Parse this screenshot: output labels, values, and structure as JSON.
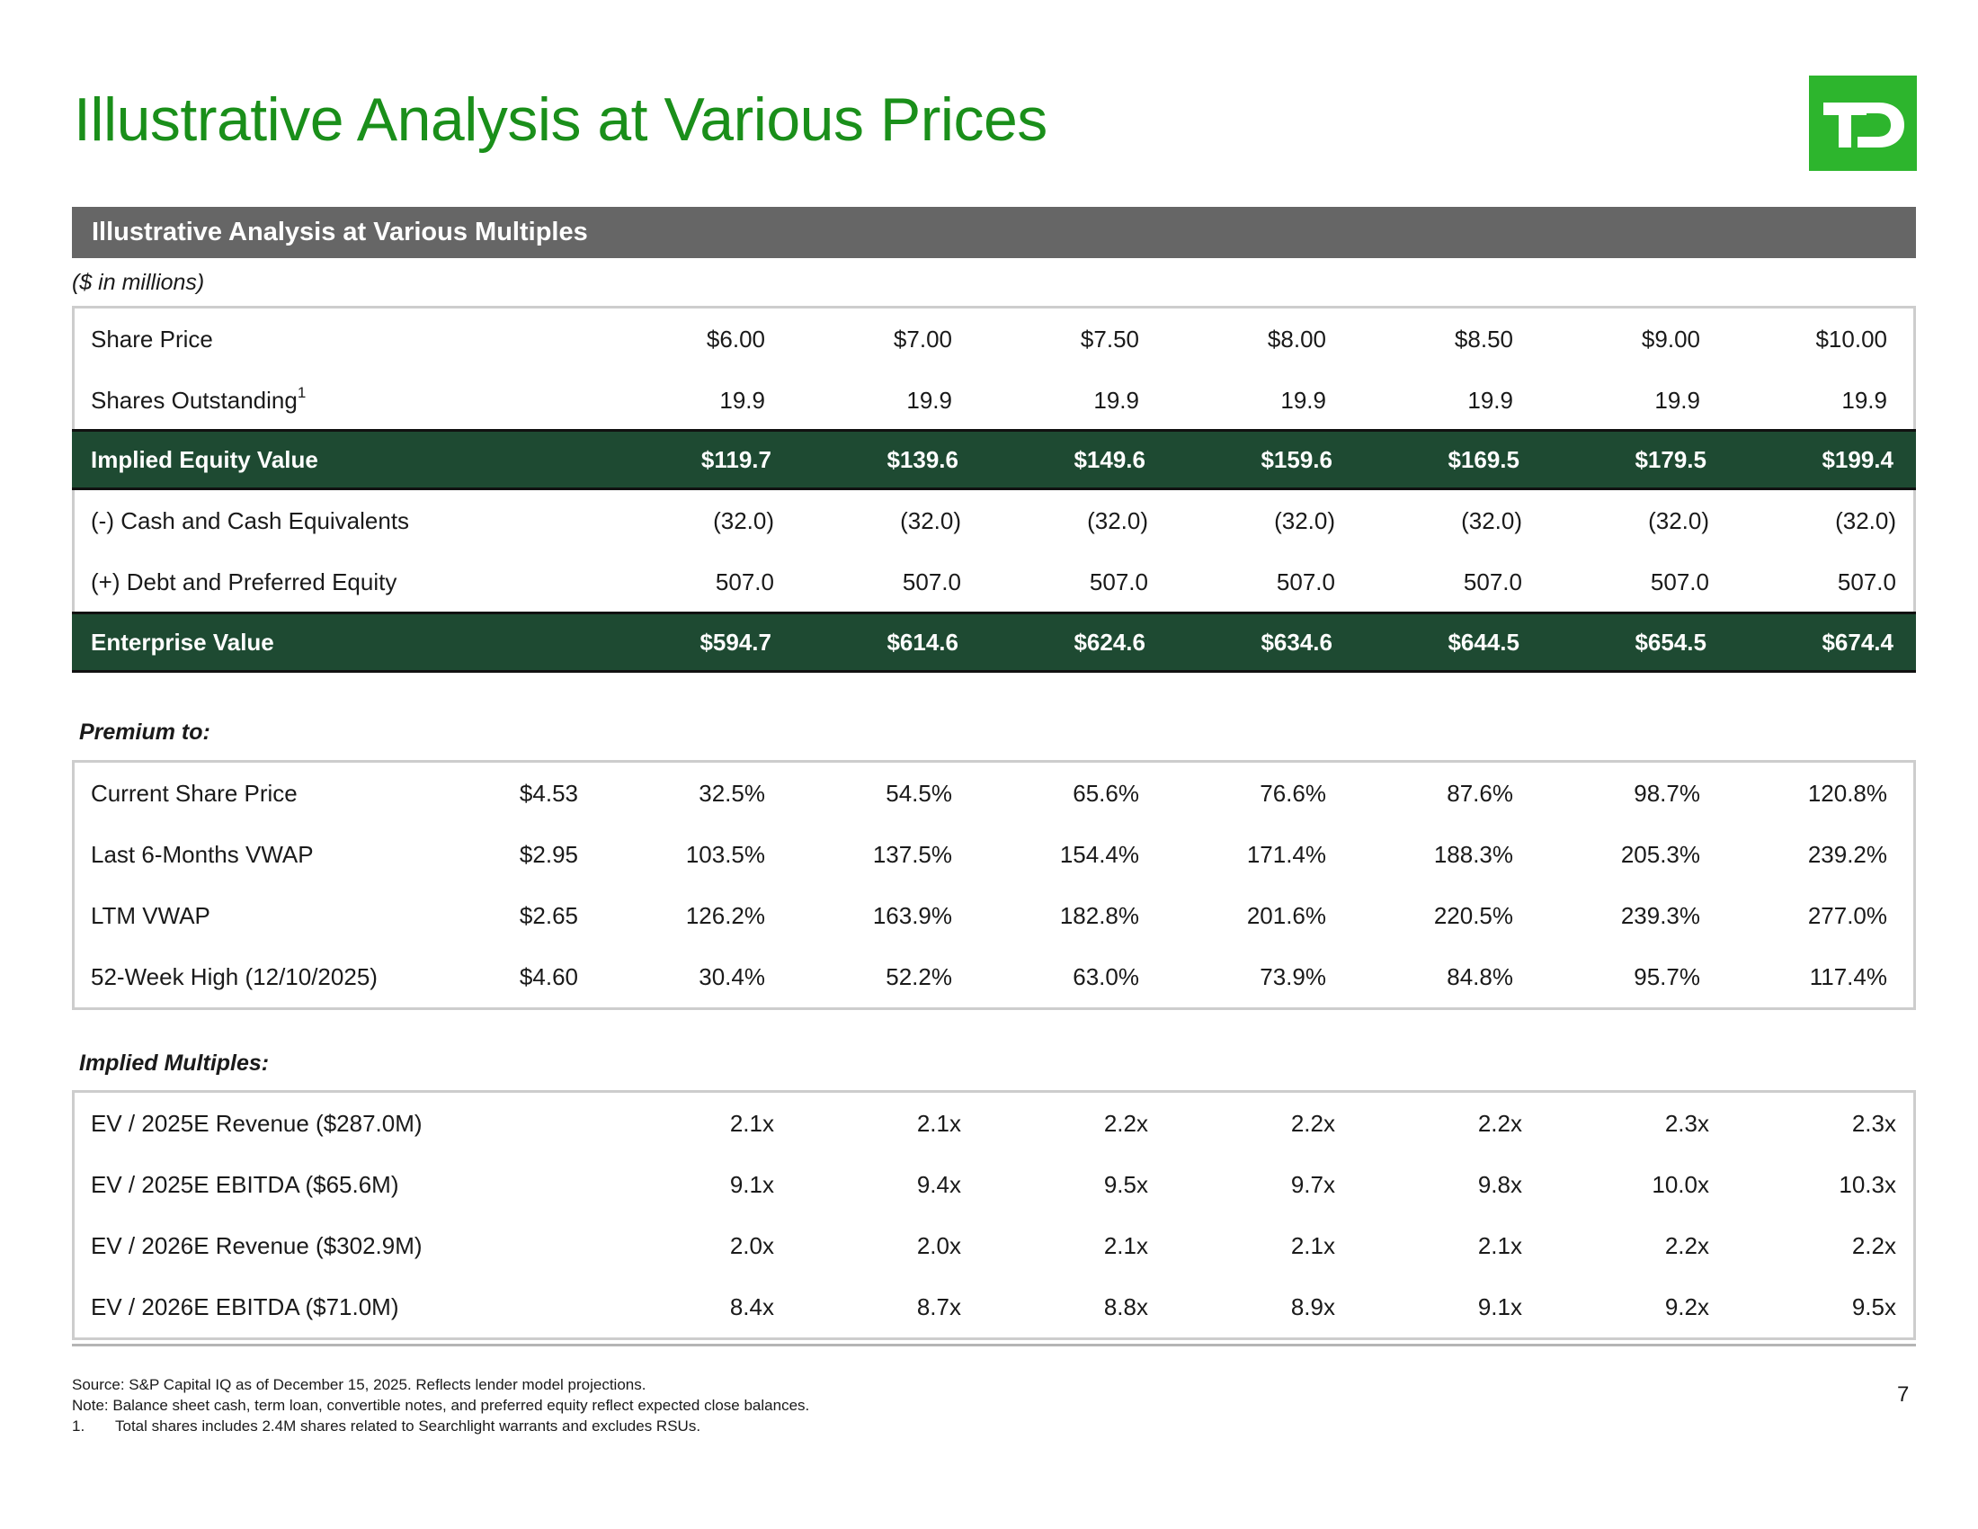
{
  "title": "Illustrative Analysis at Various Prices",
  "logo": {
    "text": "TD",
    "color": "#2db52d"
  },
  "section_header": "Illustrative Analysis at Various Multiples",
  "units_note": "($ in millions)",
  "valuation": {
    "share_price": {
      "label": "Share Price",
      "values": [
        "$6.00",
        "$7.00",
        "$7.50",
        "$8.00",
        "$8.50",
        "$9.00",
        "$10.00"
      ]
    },
    "shares_outstanding": {
      "label": "Shares Outstanding",
      "footnote": "1",
      "values": [
        "19.9",
        "19.9",
        "19.9",
        "19.9",
        "19.9",
        "19.9",
        "19.9"
      ]
    },
    "equity_value": {
      "label": "Implied Equity Value",
      "values": [
        "$119.7",
        "$139.6",
        "$149.6",
        "$159.6",
        "$169.5",
        "$179.5",
        "$199.4"
      ]
    },
    "cash": {
      "label": "(-) Cash and Cash Equivalents",
      "values": [
        "(32.0)",
        "(32.0)",
        "(32.0)",
        "(32.0)",
        "(32.0)",
        "(32.0)",
        "(32.0)"
      ]
    },
    "debt": {
      "label": "(+) Debt and Preferred Equity",
      "values": [
        "507.0",
        "507.0",
        "507.0",
        "507.0",
        "507.0",
        "507.0",
        "507.0"
      ]
    },
    "enterprise_value": {
      "label": "Enterprise Value",
      "values": [
        "$594.7",
        "$614.6",
        "$624.6",
        "$634.6",
        "$644.5",
        "$654.5",
        "$674.4"
      ]
    }
  },
  "premium": {
    "heading": "Premium to:",
    "rows": [
      {
        "label": "Current Share Price",
        "ref": "$4.53",
        "values": [
          "32.5%",
          "54.5%",
          "65.6%",
          "76.6%",
          "87.6%",
          "98.7%",
          "120.8%"
        ]
      },
      {
        "label": "Last 6-Months VWAP",
        "ref": "$2.95",
        "values": [
          "103.5%",
          "137.5%",
          "154.4%",
          "171.4%",
          "188.3%",
          "205.3%",
          "239.2%"
        ]
      },
      {
        "label": "LTM VWAP",
        "ref": "$2.65",
        "values": [
          "126.2%",
          "163.9%",
          "182.8%",
          "201.6%",
          "220.5%",
          "239.3%",
          "277.0%"
        ]
      },
      {
        "label": "52-Week High (12/10/2025)",
        "ref": "$4.60",
        "values": [
          "30.4%",
          "52.2%",
          "63.0%",
          "73.9%",
          "84.8%",
          "95.7%",
          "117.4%"
        ]
      }
    ]
  },
  "multiples": {
    "heading": "Implied Multiples:",
    "rows": [
      {
        "label": "EV / 2025E Revenue ($287.0M)",
        "values": [
          "2.1x",
          "2.1x",
          "2.2x",
          "2.2x",
          "2.2x",
          "2.3x",
          "2.3x"
        ]
      },
      {
        "label": "EV / 2025E EBITDA ($65.6M)",
        "values": [
          "9.1x",
          "9.4x",
          "9.5x",
          "9.7x",
          "9.8x",
          "10.0x",
          "10.3x"
        ]
      },
      {
        "label": "EV / 2026E Revenue ($302.9M)",
        "values": [
          "2.0x",
          "2.0x",
          "2.1x",
          "2.1x",
          "2.1x",
          "2.2x",
          "2.2x"
        ]
      },
      {
        "label": "EV / 2026E EBITDA ($71.0M)",
        "values": [
          "8.4x",
          "8.7x",
          "8.8x",
          "8.9x",
          "9.1x",
          "9.2x",
          "9.5x"
        ]
      }
    ]
  },
  "notes": {
    "source": "Source: S&P Capital IQ as of December 15, 2025. Reflects lender model projections.",
    "note": "Note: Balance sheet cash, term loan, convertible notes, and preferred equity reflect expected close balances.",
    "footnote_number": "1.",
    "footnote_text": "Total shares includes 2.4M shares related to Searchlight warrants and excludes RSUs."
  },
  "page_number": "7",
  "colors": {
    "title_green": "#1a8f1a",
    "highlight_row": "#1e4a32",
    "section_bar": "#666666"
  }
}
